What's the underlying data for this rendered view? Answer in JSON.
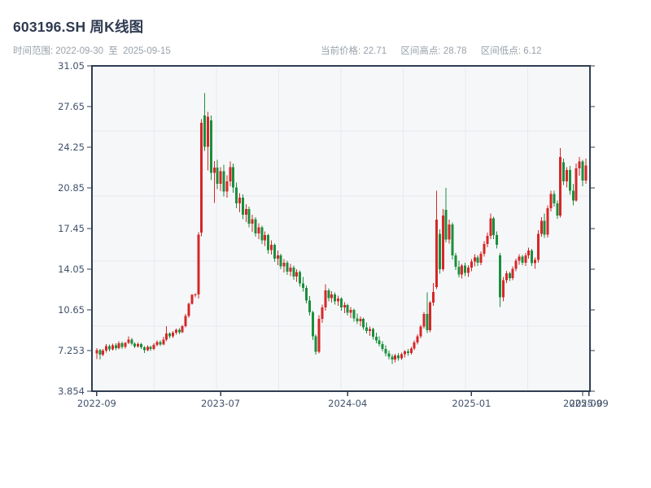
{
  "header": {
    "title": "603196.SH 周K线图",
    "time_range": {
      "label": "时间范围:",
      "start": "2022-09-30",
      "to_word": "至",
      "end": "2025-09-15"
    },
    "stats": [
      {
        "label": "当前价格:",
        "value": "22.71"
      },
      {
        "label": "区间高点:",
        "value": "28.78"
      },
      {
        "label": "区间低点:",
        "value": "6.12"
      }
    ]
  },
  "chart_data": {
    "type": "candlestick",
    "symbol": "603196.SH",
    "frequency": "weekly",
    "title": "603196.SH 周K线图",
    "start_date": "2022-09-30",
    "end_date": "2025-09-15",
    "current_price": 22.71,
    "range_high": 28.78,
    "range_low": 6.12,
    "grid": true,
    "up_color": "#d62728",
    "down_color": "#1a8f3d",
    "axis_color": "#2f3e52",
    "tick_label_color": "#42526b",
    "plot_bg": "#f6f7f9",
    "grid_color": "#e7eaee",
    "y_axis": {
      "min": 3.854,
      "max": 31.05,
      "tick_labels": [
        "3.854",
        "7.253",
        "10.65",
        "14.05",
        "17.45",
        "20.85",
        "24.25",
        "27.65",
        "31.05"
      ],
      "tick_values": [
        3.854,
        7.253,
        10.65,
        14.05,
        17.45,
        20.85,
        24.25,
        27.65,
        31.05
      ]
    },
    "x_axis": {
      "tick_indices": [
        0,
        39,
        79,
        118,
        153,
        155
      ],
      "tick_labels": [
        "2022-09",
        "2023-07",
        "2024-04",
        "2025-01",
        "2025-09",
        "2025-09"
      ]
    },
    "candles_format": [
      "open",
      "high",
      "low",
      "close"
    ],
    "candles": [
      [
        7.0,
        7.45,
        6.55,
        7.28
      ],
      [
        7.28,
        7.4,
        6.5,
        6.92
      ],
      [
        6.92,
        7.38,
        6.78,
        7.25
      ],
      [
        7.25,
        7.8,
        7.1,
        7.62
      ],
      [
        7.62,
        7.75,
        7.2,
        7.35
      ],
      [
        7.35,
        7.82,
        7.25,
        7.7
      ],
      [
        7.7,
        7.85,
        7.3,
        7.45
      ],
      [
        7.45,
        8.02,
        7.35,
        7.88
      ],
      [
        7.88,
        8.0,
        7.4,
        7.55
      ],
      [
        7.55,
        7.98,
        7.42,
        7.9
      ],
      [
        7.9,
        8.45,
        7.8,
        8.18
      ],
      [
        8.18,
        8.3,
        7.7,
        7.82
      ],
      [
        7.82,
        7.95,
        7.45,
        7.58
      ],
      [
        7.58,
        7.92,
        7.48,
        7.8
      ],
      [
        7.8,
        7.9,
        7.38,
        7.52
      ],
      [
        7.52,
        7.62,
        7.05,
        7.3
      ],
      [
        7.3,
        7.68,
        7.18,
        7.56
      ],
      [
        7.56,
        7.65,
        7.22,
        7.38
      ],
      [
        7.38,
        7.85,
        7.28,
        7.72
      ],
      [
        7.72,
        8.1,
        7.6,
        7.98
      ],
      [
        7.98,
        8.12,
        7.62,
        7.78
      ],
      [
        7.78,
        8.42,
        7.68,
        8.16
      ],
      [
        8.16,
        9.28,
        8.05,
        8.68
      ],
      [
        8.68,
        8.8,
        8.28,
        8.45
      ],
      [
        8.45,
        8.88,
        8.32,
        8.76
      ],
      [
        8.76,
        9.1,
        8.58,
        8.98
      ],
      [
        8.98,
        9.12,
        8.62,
        8.8
      ],
      [
        8.8,
        9.4,
        8.7,
        9.3
      ],
      [
        9.3,
        10.3,
        9.18,
        10.15
      ],
      [
        10.15,
        11.25,
        10.02,
        11.17
      ],
      [
        11.17,
        11.98,
        11.08,
        11.9
      ],
      [
        11.9,
        12.05,
        11.72,
        11.95
      ],
      [
        11.95,
        17.15,
        11.6,
        16.95
      ],
      [
        17.1,
        26.6,
        16.8,
        26.3
      ],
      [
        26.9,
        28.78,
        23.95,
        24.3
      ],
      [
        24.3,
        27.2,
        22.3,
        26.8
      ],
      [
        26.5,
        26.9,
        21.5,
        22.1
      ],
      [
        22.1,
        23.1,
        19.6,
        22.55
      ],
      [
        22.55,
        23.2,
        20.75,
        21.2
      ],
      [
        21.2,
        22.6,
        20.58,
        22.25
      ],
      [
        22.25,
        22.8,
        20.15,
        20.55
      ],
      [
        20.55,
        21.9,
        20.05,
        21.4
      ],
      [
        21.4,
        23.05,
        21.0,
        22.6
      ],
      [
        22.6,
        22.9,
        20.45,
        20.9
      ],
      [
        20.9,
        21.3,
        19.15,
        19.55
      ],
      [
        19.55,
        20.4,
        18.8,
        20.05
      ],
      [
        20.05,
        20.3,
        18.25,
        18.6
      ],
      [
        18.6,
        19.5,
        18.0,
        19.1
      ],
      [
        19.1,
        19.3,
        17.55,
        17.85
      ],
      [
        17.85,
        18.6,
        17.18,
        18.25
      ],
      [
        18.25,
        18.4,
        16.78,
        17.05
      ],
      [
        17.05,
        17.9,
        16.58,
        17.55
      ],
      [
        17.55,
        17.7,
        16.15,
        16.45
      ],
      [
        16.45,
        17.2,
        16.0,
        16.9
      ],
      [
        16.9,
        17.0,
        15.35,
        15.65
      ],
      [
        15.65,
        16.45,
        15.28,
        16.1
      ],
      [
        16.1,
        16.2,
        14.68,
        14.95
      ],
      [
        14.95,
        15.6,
        14.4,
        15.2
      ],
      [
        15.2,
        15.35,
        14.05,
        14.3
      ],
      [
        14.3,
        14.9,
        13.78,
        14.6
      ],
      [
        14.6,
        14.75,
        13.58,
        13.85
      ],
      [
        13.85,
        14.5,
        13.48,
        14.2
      ],
      [
        14.2,
        14.35,
        13.18,
        13.45
      ],
      [
        13.45,
        14.05,
        13.0,
        13.8
      ],
      [
        13.8,
        13.95,
        12.58,
        12.85
      ],
      [
        12.85,
        13.4,
        12.18,
        12.5
      ],
      [
        12.5,
        12.7,
        11.18,
        11.45
      ],
      [
        11.45,
        11.8,
        10.18,
        10.45
      ],
      [
        10.45,
        10.6,
        8.15,
        8.45
      ],
      [
        8.45,
        8.6,
        6.9,
        7.15
      ],
      [
        7.15,
        10.2,
        7.0,
        9.9
      ],
      [
        9.9,
        11.1,
        9.58,
        10.85
      ],
      [
        10.85,
        12.8,
        10.6,
        12.3
      ],
      [
        12.3,
        12.45,
        11.38,
        11.65
      ],
      [
        11.65,
        12.2,
        11.28,
        11.95
      ],
      [
        11.95,
        12.1,
        11.08,
        11.35
      ],
      [
        11.35,
        11.85,
        10.98,
        11.6
      ],
      [
        11.6,
        11.7,
        10.58,
        10.85
      ],
      [
        10.85,
        11.3,
        10.38,
        11.05
      ],
      [
        11.05,
        11.15,
        10.18,
        10.4
      ],
      [
        10.4,
        10.9,
        9.98,
        10.65
      ],
      [
        10.65,
        10.75,
        9.68,
        9.95
      ],
      [
        9.95,
        10.35,
        9.48,
        9.7
      ],
      [
        9.7,
        10.1,
        9.28,
        9.9
      ],
      [
        9.9,
        10.0,
        8.98,
        9.2
      ],
      [
        9.2,
        9.6,
        8.68,
        8.9
      ],
      [
        8.9,
        9.25,
        8.48,
        9.05
      ],
      [
        9.05,
        9.15,
        8.18,
        8.4
      ],
      [
        8.4,
        8.75,
        7.88,
        8.1
      ],
      [
        8.1,
        8.45,
        7.58,
        7.8
      ],
      [
        7.8,
        8.05,
        7.18,
        7.4
      ],
      [
        7.4,
        7.7,
        6.78,
        7.0
      ],
      [
        7.0,
        7.25,
        6.52,
        6.75
      ],
      [
        6.75,
        6.95,
        6.12,
        6.5
      ],
      [
        6.5,
        6.98,
        6.28,
        6.85
      ],
      [
        6.85,
        7.05,
        6.42,
        6.62
      ],
      [
        6.62,
        7.1,
        6.48,
        6.95
      ],
      [
        6.95,
        7.3,
        6.68,
        7.18
      ],
      [
        7.18,
        7.4,
        6.82,
        7.05
      ],
      [
        7.05,
        7.55,
        6.92,
        7.42
      ],
      [
        7.42,
        8.1,
        7.28,
        7.95
      ],
      [
        7.95,
        8.6,
        7.78,
        8.45
      ],
      [
        8.45,
        9.4,
        8.28,
        9.25
      ],
      [
        9.25,
        10.5,
        9.08,
        10.3
      ],
      [
        10.3,
        12.1,
        8.7,
        8.95
      ],
      [
        8.95,
        11.4,
        8.78,
        11.25
      ],
      [
        11.25,
        12.9,
        10.98,
        12.15
      ],
      [
        12.55,
        20.6,
        12.38,
        18.2
      ],
      [
        17.0,
        17.4,
        13.68,
        14.05
      ],
      [
        14.05,
        19.1,
        13.88,
        18.55
      ],
      [
        19.0,
        20.85,
        16.28,
        16.55
      ],
      [
        16.55,
        18.2,
        16.18,
        17.8
      ],
      [
        17.8,
        17.95,
        14.88,
        15.2
      ],
      [
        15.2,
        15.4,
        13.98,
        14.25
      ],
      [
        14.25,
        14.75,
        13.38,
        13.6
      ],
      [
        13.6,
        14.5,
        13.28,
        14.35
      ],
      [
        14.35,
        14.6,
        13.48,
        13.75
      ],
      [
        13.75,
        14.4,
        13.42,
        14.2
      ],
      [
        14.2,
        14.9,
        13.88,
        14.7
      ],
      [
        14.7,
        15.3,
        14.28,
        15.05
      ],
      [
        15.05,
        15.2,
        14.32,
        14.6
      ],
      [
        14.6,
        15.55,
        14.38,
        15.35
      ],
      [
        15.35,
        16.4,
        15.12,
        16.15
      ],
      [
        16.15,
        17.1,
        15.88,
        16.85
      ],
      [
        16.85,
        18.7,
        16.58,
        18.3
      ],
      [
        18.3,
        18.45,
        16.58,
        16.9
      ],
      [
        16.9,
        17.2,
        15.78,
        16.1
      ],
      [
        15.2,
        15.4,
        10.9,
        11.7
      ],
      [
        11.7,
        13.4,
        11.38,
        13.15
      ],
      [
        13.15,
        13.9,
        12.88,
        13.7
      ],
      [
        13.7,
        13.85,
        13.08,
        13.3
      ],
      [
        13.3,
        14.3,
        13.12,
        14.1
      ],
      [
        14.1,
        14.95,
        13.88,
        14.75
      ],
      [
        14.75,
        15.3,
        14.42,
        15.1
      ],
      [
        15.1,
        15.25,
        14.38,
        14.6
      ],
      [
        14.6,
        15.4,
        14.32,
        15.2
      ],
      [
        15.2,
        15.85,
        14.92,
        15.6
      ],
      [
        15.6,
        15.75,
        14.32,
        14.55
      ],
      [
        14.55,
        15.05,
        14.08,
        14.85
      ],
      [
        14.85,
        17.3,
        14.58,
        17.0
      ],
      [
        17.0,
        18.4,
        16.78,
        18.1
      ],
      [
        18.1,
        18.7,
        16.68,
        16.95
      ],
      [
        16.95,
        19.4,
        16.72,
        19.15
      ],
      [
        19.15,
        20.6,
        18.88,
        20.35
      ],
      [
        20.35,
        20.6,
        19.28,
        19.55
      ],
      [
        19.55,
        19.8,
        18.28,
        18.55
      ],
      [
        18.55,
        24.18,
        18.38,
        23.45
      ],
      [
        23.0,
        23.3,
        21.08,
        21.4
      ],
      [
        21.4,
        22.6,
        20.88,
        22.35
      ],
      [
        22.35,
        22.7,
        20.28,
        20.6
      ],
      [
        20.6,
        21.2,
        19.38,
        19.8
      ],
      [
        19.8,
        22.9,
        19.68,
        22.5
      ],
      [
        22.5,
        23.45,
        21.88,
        23.05
      ],
      [
        23.05,
        23.2,
        20.98,
        21.45
      ],
      [
        21.45,
        23.3,
        21.18,
        22.71
      ]
    ]
  }
}
